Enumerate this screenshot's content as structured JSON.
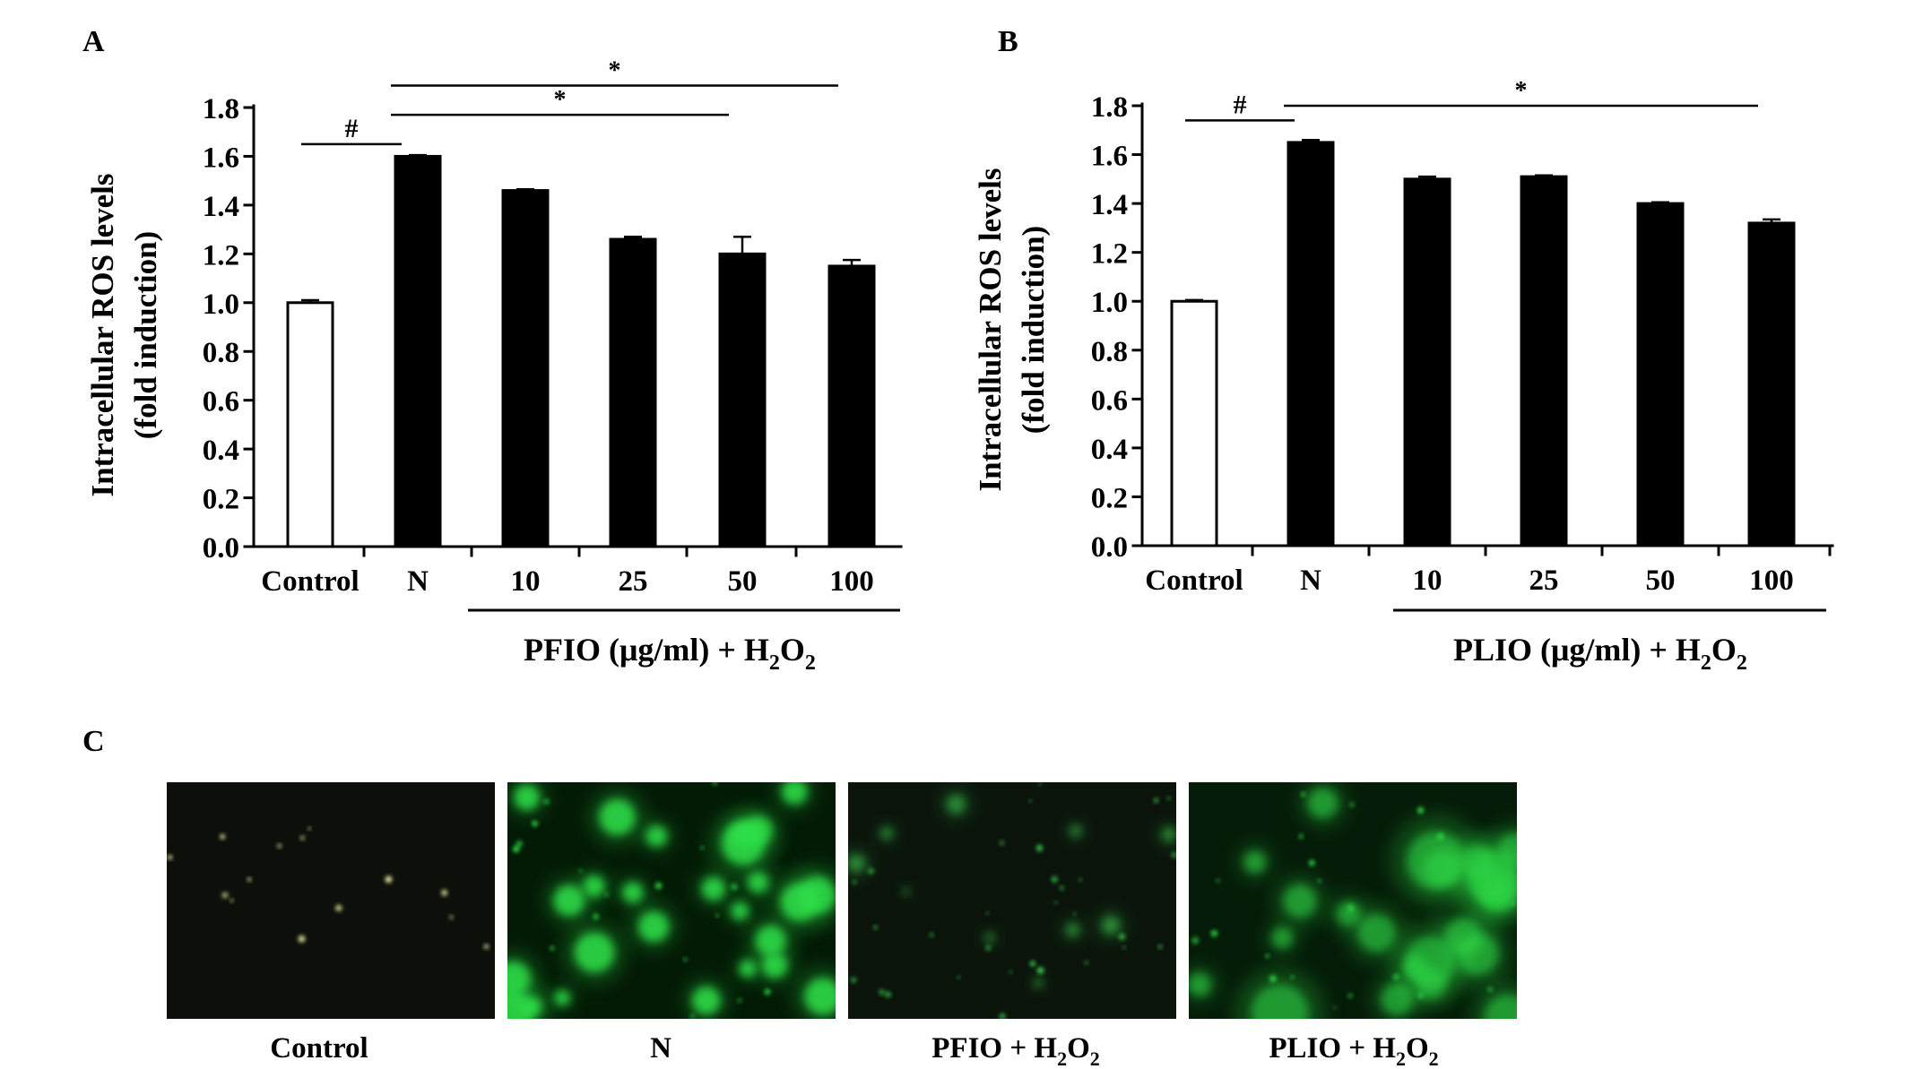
{
  "panels": {
    "a": "A",
    "b": "B",
    "c": "C"
  },
  "chart_data": [
    {
      "type": "bar",
      "panel": "A",
      "categories": [
        "Control",
        "N",
        "10",
        "25",
        "50",
        "100"
      ],
      "values": [
        1.0,
        1.6,
        1.46,
        1.26,
        1.2,
        1.15
      ],
      "errors": [
        0.01,
        0.005,
        0.005,
        0.01,
        0.07,
        0.025
      ],
      "bar_fills": [
        "white",
        "black",
        "black",
        "black",
        "black",
        "black"
      ],
      "ylabel": "Intracellular ROS levels",
      "ylabel_line2": "(fold induction)",
      "ylim": [
        0.0,
        1.8
      ],
      "yticks": [
        "0.0",
        "0.2",
        "0.4",
        "0.6",
        "0.8",
        "1.0",
        "1.2",
        "1.4",
        "1.6",
        "1.8"
      ],
      "group_label_prefix": "PFIO (μg/ml) + H",
      "group_label_sub1": "2",
      "group_label_mid": "O",
      "group_label_sub2": "2",
      "group_span": [
        2,
        5
      ],
      "significance": [
        {
          "symbol": "#",
          "from": 0,
          "to": 1,
          "level": 1.65
        },
        {
          "symbol": "*",
          "from": 1,
          "to": 4,
          "level": 1.77
        },
        {
          "symbol": "*",
          "from": 1,
          "to": 5,
          "level": 1.89
        }
      ]
    },
    {
      "type": "bar",
      "panel": "B",
      "categories": [
        "Control",
        "N",
        "10",
        "25",
        "50",
        "100"
      ],
      "values": [
        1.0,
        1.65,
        1.5,
        1.51,
        1.4,
        1.32
      ],
      "errors": [
        0.005,
        0.01,
        0.01,
        0.005,
        0.005,
        0.015
      ],
      "bar_fills": [
        "white",
        "black",
        "black",
        "black",
        "black",
        "black"
      ],
      "ylabel": "Intracellular ROS levels",
      "ylabel_line2": "(fold induction)",
      "ylim": [
        0.0,
        1.8
      ],
      "yticks": [
        "0.0",
        "0.2",
        "0.4",
        "0.6",
        "0.8",
        "1.0",
        "1.2",
        "1.4",
        "1.6",
        "1.8"
      ],
      "group_label_prefix": "PLIO (μg/ml) + H",
      "group_label_sub1": "2",
      "group_label_mid": "O",
      "group_label_sub2": "2",
      "group_span": [
        2,
        5
      ],
      "significance": [
        {
          "symbol": "#",
          "from": 0,
          "to": 1,
          "level": 1.74
        },
        {
          "symbol": "*",
          "from": 1,
          "to": 5,
          "level": 1.8
        }
      ]
    }
  ],
  "micrographs": [
    {
      "label": "Control",
      "label_sub1": "",
      "label_mid": "",
      "label_sub2": "",
      "base": "#0d0f0a",
      "glow": "#f3f7a8",
      "brightness": "very-low"
    },
    {
      "label": "N",
      "label_sub1": "",
      "label_mid": "",
      "label_sub2": "",
      "base": "#031a05",
      "glow": "#2fe04a",
      "brightness": "high"
    },
    {
      "label": "PFIO + H",
      "label_sub1": "2",
      "label_mid": "O",
      "label_sub2": "2",
      "base": "#0a140b",
      "glow": "#3ac84b",
      "brightness": "low"
    },
    {
      "label": "PLIO + H",
      "label_sub1": "2",
      "label_mid": "O",
      "label_sub2": "2",
      "base": "#051c08",
      "glow": "#2ed946",
      "brightness": "medium"
    }
  ]
}
